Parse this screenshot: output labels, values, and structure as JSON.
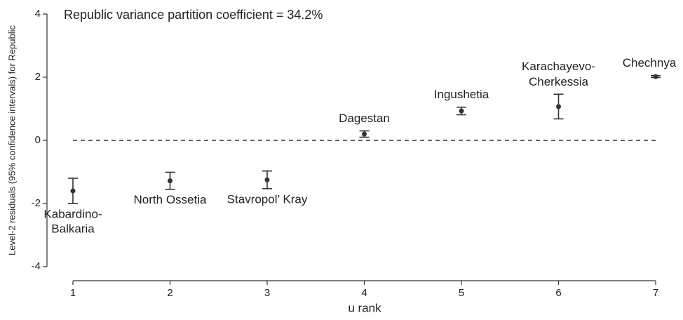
{
  "chart_data": {
    "type": "errorbar",
    "annotation": "Republic variance partition coefficient = 34.2%",
    "x_label": "u rank",
    "y_label": "Level-2 residuals (95% confidence intervals) for Republic",
    "x": [
      1,
      2,
      3,
      4,
      5,
      6,
      7
    ],
    "values": [
      -1.6,
      -1.28,
      -1.25,
      0.2,
      0.93,
      1.07,
      2.02
    ],
    "errors": [
      0.4,
      0.27,
      0.28,
      0.1,
      0.12,
      0.39,
      0.03
    ],
    "labels": [
      [
        "Kabardino-",
        "Balkaria"
      ],
      [
        "North Ossetia"
      ],
      [
        "Stavropol’ Kray"
      ],
      [
        "Dagestan"
      ],
      [
        "Ingushetia"
      ],
      [
        "Karachayevo-",
        "Cherkessia"
      ],
      [
        "Chechnya"
      ]
    ],
    "label_pos": [
      "below",
      "below",
      "below",
      "above",
      "above",
      "above",
      "above"
    ],
    "color": "#333333",
    "hline": 0,
    "xlim": [
      1,
      7
    ],
    "xticks": [
      1,
      2,
      3,
      4,
      5,
      6,
      7
    ],
    "ylim": [
      -4,
      4
    ],
    "yticks": [
      -4,
      -2,
      0,
      2,
      4
    ]
  }
}
